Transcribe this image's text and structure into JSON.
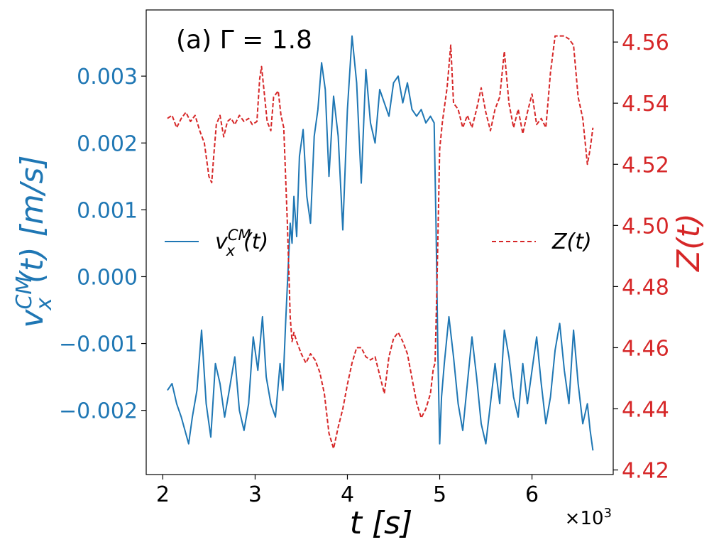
{
  "chart_data": {
    "type": "line",
    "annotation": "(a)  Γ = 1.8",
    "xlabel": "t [s]",
    "x_multiplier": "×10³",
    "ylabel_left": "v_x^CM(t) [m/s]",
    "ylabel_right": "Z(t)",
    "xlim": [
      1.82,
      6.88
    ],
    "ylim_left": [
      -0.00296,
      0.00399
    ],
    "ylim_right": [
      4.4185,
      4.5705
    ],
    "x_ticks": [
      2,
      3,
      4,
      5,
      6
    ],
    "x_tick_labels": [
      "2",
      "3",
      "4",
      "5",
      "6"
    ],
    "y_left_ticks": [
      -0.002,
      -0.001,
      0.0,
      0.001,
      0.002,
      0.003
    ],
    "y_left_tick_labels": [
      "−0.002",
      "−0.001",
      "0.000",
      "0.001",
      "0.002",
      "0.003"
    ],
    "y_right_ticks": [
      4.42,
      4.44,
      4.46,
      4.48,
      4.5,
      4.52,
      4.54,
      4.56
    ],
    "y_right_tick_labels": [
      "4.42",
      "4.44",
      "4.46",
      "4.48",
      "4.50",
      "4.52",
      "4.54",
      "4.56"
    ],
    "colors": {
      "left": "#1f77b4",
      "right": "#d62728"
    },
    "series": [
      {
        "name": "v_x^CM(t)",
        "axis": "left",
        "style": "solid",
        "color": "#1f77b4",
        "x": [
          2.05,
          2.1,
          2.15,
          2.2,
          2.24,
          2.28,
          2.32,
          2.37,
          2.42,
          2.47,
          2.52,
          2.57,
          2.62,
          2.67,
          2.72,
          2.78,
          2.83,
          2.88,
          2.93,
          2.98,
          3.03,
          3.08,
          3.12,
          3.17,
          3.22,
          3.27,
          3.3,
          3.33,
          3.36,
          3.38,
          3.4,
          3.42,
          3.45,
          3.48,
          3.52,
          3.56,
          3.6,
          3.64,
          3.68,
          3.72,
          3.76,
          3.8,
          3.85,
          3.9,
          3.95,
          4.0,
          4.05,
          4.1,
          4.15,
          4.2,
          4.25,
          4.3,
          4.35,
          4.4,
          4.45,
          4.5,
          4.55,
          4.6,
          4.65,
          4.7,
          4.75,
          4.8,
          4.85,
          4.9,
          4.94,
          4.96,
          4.98,
          5.0,
          5.02,
          5.05,
          5.1,
          5.15,
          5.2,
          5.25,
          5.3,
          5.35,
          5.4,
          5.45,
          5.5,
          5.55,
          5.6,
          5.65,
          5.7,
          5.75,
          5.8,
          5.85,
          5.9,
          5.95,
          6.0,
          6.05,
          6.1,
          6.15,
          6.2,
          6.25,
          6.3,
          6.35,
          6.4,
          6.45,
          6.5,
          6.55,
          6.6,
          6.63,
          6.66
        ],
        "values": [
          -0.0017,
          -0.0016,
          -0.0019,
          -0.0021,
          -0.0023,
          -0.0025,
          -0.0021,
          -0.0017,
          -0.0008,
          -0.0019,
          -0.0024,
          -0.0013,
          -0.0016,
          -0.0021,
          -0.0017,
          -0.0012,
          -0.002,
          -0.0023,
          -0.0019,
          -0.0009,
          -0.0014,
          -0.0006,
          -0.0015,
          -0.0019,
          -0.0021,
          -0.0013,
          -0.0017,
          -0.0007,
          0.0002,
          0.0008,
          0.0005,
          0.0012,
          0.0006,
          0.0018,
          0.0022,
          0.0012,
          0.0008,
          0.0021,
          0.0025,
          0.0032,
          0.0028,
          0.0015,
          0.0027,
          0.0021,
          0.0007,
          0.0025,
          0.0036,
          0.0029,
          0.0014,
          0.0031,
          0.0023,
          0.002,
          0.0028,
          0.0026,
          0.0024,
          0.0029,
          0.003,
          0.0026,
          0.0029,
          0.0025,
          0.0024,
          0.0025,
          0.0023,
          0.0024,
          0.0023,
          0.0008,
          -0.0011,
          -0.0025,
          -0.0018,
          -0.0013,
          -0.0006,
          -0.0012,
          -0.0019,
          -0.0023,
          -0.0016,
          -0.0009,
          -0.0015,
          -0.0022,
          -0.0025,
          -0.0019,
          -0.0013,
          -0.0019,
          -0.0008,
          -0.0012,
          -0.0018,
          -0.0021,
          -0.0013,
          -0.0019,
          -0.0014,
          -0.0009,
          -0.0016,
          -0.0022,
          -0.0018,
          -0.0011,
          -0.0007,
          -0.0014,
          -0.0019,
          -0.0008,
          -0.0016,
          -0.0022,
          -0.0019,
          -0.0023,
          -0.0026
        ]
      },
      {
        "name": "Z(t)",
        "axis": "right",
        "style": "dashed",
        "color": "#d62728",
        "x": [
          2.05,
          2.1,
          2.15,
          2.2,
          2.25,
          2.3,
          2.35,
          2.4,
          2.45,
          2.5,
          2.53,
          2.55,
          2.58,
          2.62,
          2.66,
          2.7,
          2.74,
          2.78,
          2.83,
          2.88,
          2.93,
          2.97,
          3.02,
          3.05,
          3.07,
          3.1,
          3.13,
          3.17,
          3.2,
          3.25,
          3.28,
          3.31,
          3.35,
          3.38,
          3.4,
          3.42,
          3.45,
          3.5,
          3.55,
          3.6,
          3.65,
          3.7,
          3.75,
          3.8,
          3.85,
          3.9,
          3.95,
          4.0,
          4.05,
          4.1,
          4.15,
          4.2,
          4.25,
          4.3,
          4.35,
          4.4,
          4.45,
          4.5,
          4.55,
          4.6,
          4.65,
          4.7,
          4.75,
          4.8,
          4.85,
          4.9,
          4.93,
          4.95,
          4.97,
          5.0,
          5.03,
          5.08,
          5.12,
          5.15,
          5.2,
          5.25,
          5.3,
          5.35,
          5.4,
          5.45,
          5.5,
          5.55,
          5.6,
          5.65,
          5.7,
          5.75,
          5.8,
          5.85,
          5.9,
          5.95,
          6.0,
          6.05,
          6.1,
          6.15,
          6.2,
          6.25,
          6.3,
          6.35,
          6.4,
          6.45,
          6.5,
          6.55,
          6.6,
          6.63,
          6.66
        ],
        "values": [
          4.535,
          4.536,
          4.532,
          4.535,
          4.537,
          4.534,
          4.536,
          4.531,
          4.527,
          4.516,
          4.514,
          4.522,
          4.533,
          4.536,
          4.529,
          4.534,
          4.535,
          4.533,
          4.536,
          4.534,
          4.535,
          4.533,
          4.534,
          4.548,
          4.552,
          4.543,
          4.534,
          4.531,
          4.542,
          4.544,
          4.536,
          4.532,
          4.5,
          4.47,
          4.462,
          4.465,
          4.462,
          4.458,
          4.455,
          4.458,
          4.456,
          4.452,
          4.445,
          4.432,
          4.427,
          4.434,
          4.44,
          4.448,
          4.455,
          4.46,
          4.46,
          4.457,
          4.456,
          4.457,
          4.451,
          4.445,
          4.457,
          4.463,
          4.465,
          4.462,
          4.458,
          4.45,
          4.442,
          4.437,
          4.44,
          4.445,
          4.453,
          4.455,
          4.48,
          4.525,
          4.534,
          4.545,
          4.559,
          4.54,
          4.538,
          4.532,
          4.536,
          4.532,
          4.538,
          4.545,
          4.537,
          4.531,
          4.538,
          4.542,
          4.557,
          4.54,
          4.532,
          4.538,
          4.53,
          4.537,
          4.543,
          4.533,
          4.535,
          4.532,
          4.55,
          4.562,
          4.562,
          4.562,
          4.561,
          4.559,
          4.542,
          4.535,
          4.52,
          4.525,
          4.532
        ]
      }
    ]
  }
}
